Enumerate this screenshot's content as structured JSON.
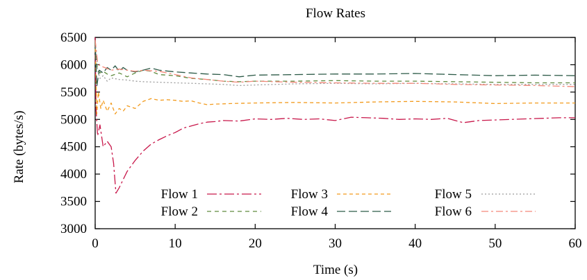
{
  "chart_data": {
    "type": "line",
    "title": "Flow Rates",
    "xlabel": "Time (s)",
    "ylabel": "Rate (bytes/s)",
    "xlim": [
      0,
      60
    ],
    "ylim": [
      3000,
      6500
    ],
    "xticks": [
      "0",
      "10",
      "20",
      "30",
      "40",
      "50",
      "60"
    ],
    "yticks": [
      "3000",
      "3500",
      "4000",
      "4500",
      "5000",
      "5500",
      "6000",
      "6500"
    ],
    "grid": false,
    "legend_position": "inside-bottom",
    "series": [
      {
        "name": "Flow 1",
        "color": "#c8174a",
        "dash": "14,4,3,4",
        "x": [
          0,
          0.1,
          0.3,
          0.6,
          1.0,
          1.5,
          2.0,
          2.3,
          2.6,
          3.0,
          3.5,
          4.0,
          5.0,
          6.0,
          7.0,
          8.0,
          9.0,
          10.0,
          11.0,
          12.0,
          13.0,
          14.0,
          15.0,
          16.0,
          18.0,
          20.0,
          22.0,
          24.0,
          26.0,
          28.0,
          30.0,
          32.0,
          34.0,
          36.0,
          38.0,
          40.0,
          42.0,
          44.0,
          46.0,
          48.0,
          50.0,
          52.0,
          54.0,
          56.0,
          58.0,
          60.0
        ],
        "y": [
          6500,
          5200,
          4700,
          4900,
          4500,
          4600,
          4500,
          4200,
          3650,
          3750,
          3900,
          4050,
          4250,
          4420,
          4550,
          4630,
          4700,
          4760,
          4840,
          4880,
          4920,
          4950,
          4960,
          4980,
          4970,
          5010,
          5000,
          5020,
          5000,
          5010,
          4980,
          5040,
          5030,
          5020,
          5000,
          5010,
          5000,
          5020,
          4940,
          4980,
          4990,
          5000,
          5010,
          5020,
          5030,
          5030
        ]
      },
      {
        "name": "Flow 2",
        "color": "#5f8a3d",
        "dash": "6,5",
        "x": [
          0,
          0.3,
          0.6,
          1.0,
          1.5,
          2.0,
          3.0,
          4.0,
          5.0,
          6.0,
          7.0,
          8.0,
          10.0,
          12.0,
          14.0,
          16.0,
          18.0,
          20.0,
          25.0,
          30.0,
          35.0,
          40.0,
          45.0,
          50.0,
          55.0,
          60.0
        ],
        "y": [
          6300,
          5900,
          5850,
          5880,
          5830,
          5800,
          5850,
          5780,
          5850,
          5900,
          5880,
          5820,
          5800,
          5750,
          5730,
          5700,
          5690,
          5700,
          5700,
          5710,
          5700,
          5700,
          5690,
          5680,
          5670,
          5670
        ]
      },
      {
        "name": "Flow 3",
        "color": "#f29a1c",
        "dash": "5,4",
        "x": [
          0,
          0.2,
          0.4,
          0.7,
          1.0,
          1.5,
          2.0,
          2.5,
          3.0,
          3.5,
          4.0,
          5.0,
          6.0,
          7.0,
          8.0,
          9.0,
          10.0,
          11.0,
          12.0,
          13.0,
          14.0,
          15.0,
          17.0,
          20.0,
          25.0,
          30.0,
          35.0,
          40.0,
          45.0,
          50.0,
          55.0,
          60.0
        ],
        "y": [
          6400,
          5100,
          5500,
          5200,
          5350,
          5150,
          5300,
          5100,
          5200,
          5150,
          5250,
          5200,
          5330,
          5380,
          5350,
          5360,
          5350,
          5330,
          5340,
          5300,
          5270,
          5280,
          5290,
          5300,
          5310,
          5300,
          5320,
          5330,
          5320,
          5290,
          5300,
          5300
        ]
      },
      {
        "name": "Flow 4",
        "color": "#2c5a47",
        "dash": "12,5",
        "x": [
          0,
          0.2,
          0.5,
          1.0,
          1.5,
          2.0,
          2.5,
          3.0,
          3.5,
          4.0,
          5.0,
          6.0,
          7.0,
          8.0,
          10.0,
          12.0,
          14.0,
          16.0,
          18.0,
          20.0,
          25.0,
          30.0,
          35.0,
          40.0,
          45.0,
          50.0,
          55.0,
          60.0
        ],
        "y": [
          6450,
          5600,
          5900,
          5850,
          5950,
          5900,
          5980,
          5880,
          5950,
          5900,
          5870,
          5900,
          5940,
          5900,
          5870,
          5850,
          5830,
          5820,
          5780,
          5810,
          5820,
          5830,
          5830,
          5840,
          5820,
          5800,
          5810,
          5800
        ]
      },
      {
        "name": "Flow 5",
        "color": "#9a9a9a",
        "dash": "2,3",
        "x": [
          0,
          0.3,
          0.6,
          1.0,
          1.5,
          2.0,
          3.0,
          4.0,
          5.0,
          6.0,
          8.0,
          10.0,
          12.0,
          14.0,
          16.0,
          18.0,
          20.0,
          25.0,
          30.0,
          35.0,
          40.0,
          45.0,
          50.0,
          55.0,
          60.0
        ],
        "y": [
          6450,
          5900,
          5750,
          5800,
          5700,
          5760,
          5730,
          5720,
          5700,
          5690,
          5680,
          5670,
          5660,
          5650,
          5640,
          5620,
          5630,
          5650,
          5660,
          5650,
          5660,
          5650,
          5640,
          5640,
          5640
        ]
      },
      {
        "name": "Flow 6",
        "color": "#f4887a",
        "dash": "10,4,3,4",
        "x": [
          0,
          0.3,
          0.6,
          1.0,
          1.5,
          2.0,
          3.0,
          4.0,
          5.0,
          6.0,
          8.0,
          10.0,
          12.0,
          14.0,
          16.0,
          18.0,
          20.0,
          25.0,
          30.0,
          35.0,
          40.0,
          45.0,
          50.0,
          55.0,
          60.0
        ],
        "y": [
          6450,
          6050,
          5980,
          5960,
          5930,
          5900,
          5920,
          5900,
          5880,
          5900,
          5880,
          5820,
          5760,
          5730,
          5700,
          5680,
          5700,
          5680,
          5670,
          5660,
          5660,
          5640,
          5630,
          5620,
          5600
        ]
      }
    ]
  }
}
